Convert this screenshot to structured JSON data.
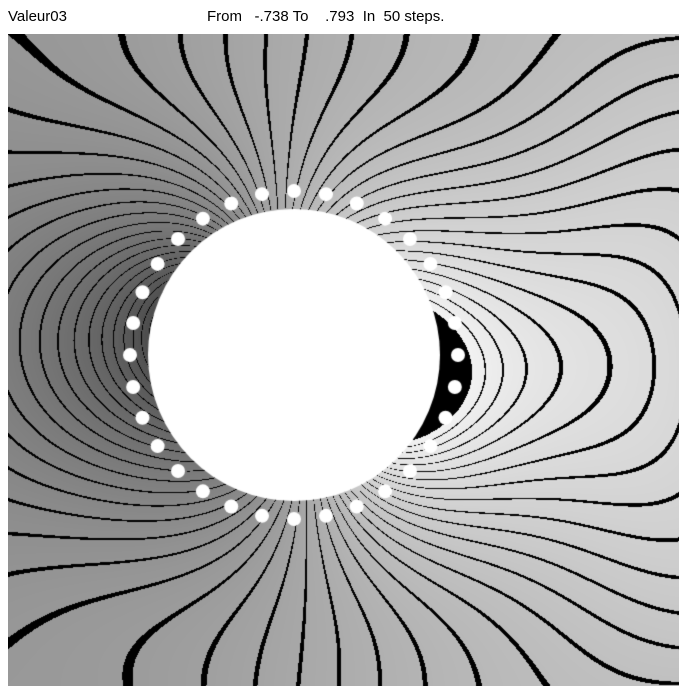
{
  "header": {
    "variable": "Valeur03",
    "from_label": "From",
    "from_value": "-.738",
    "to_label": "To",
    "to_value": ".793",
    "in_label": "In",
    "steps_value": "50",
    "steps_label": "steps."
  },
  "chart_data": {
    "type": "heatmap",
    "variable": "Valeur03",
    "min": -0.738,
    "max": 0.793,
    "levels": 50,
    "colormap": [
      "#141414",
      "#f2f2f2"
    ],
    "contour_color": "#000000",
    "obstacle": "circle",
    "boundary_markers": 32
  }
}
